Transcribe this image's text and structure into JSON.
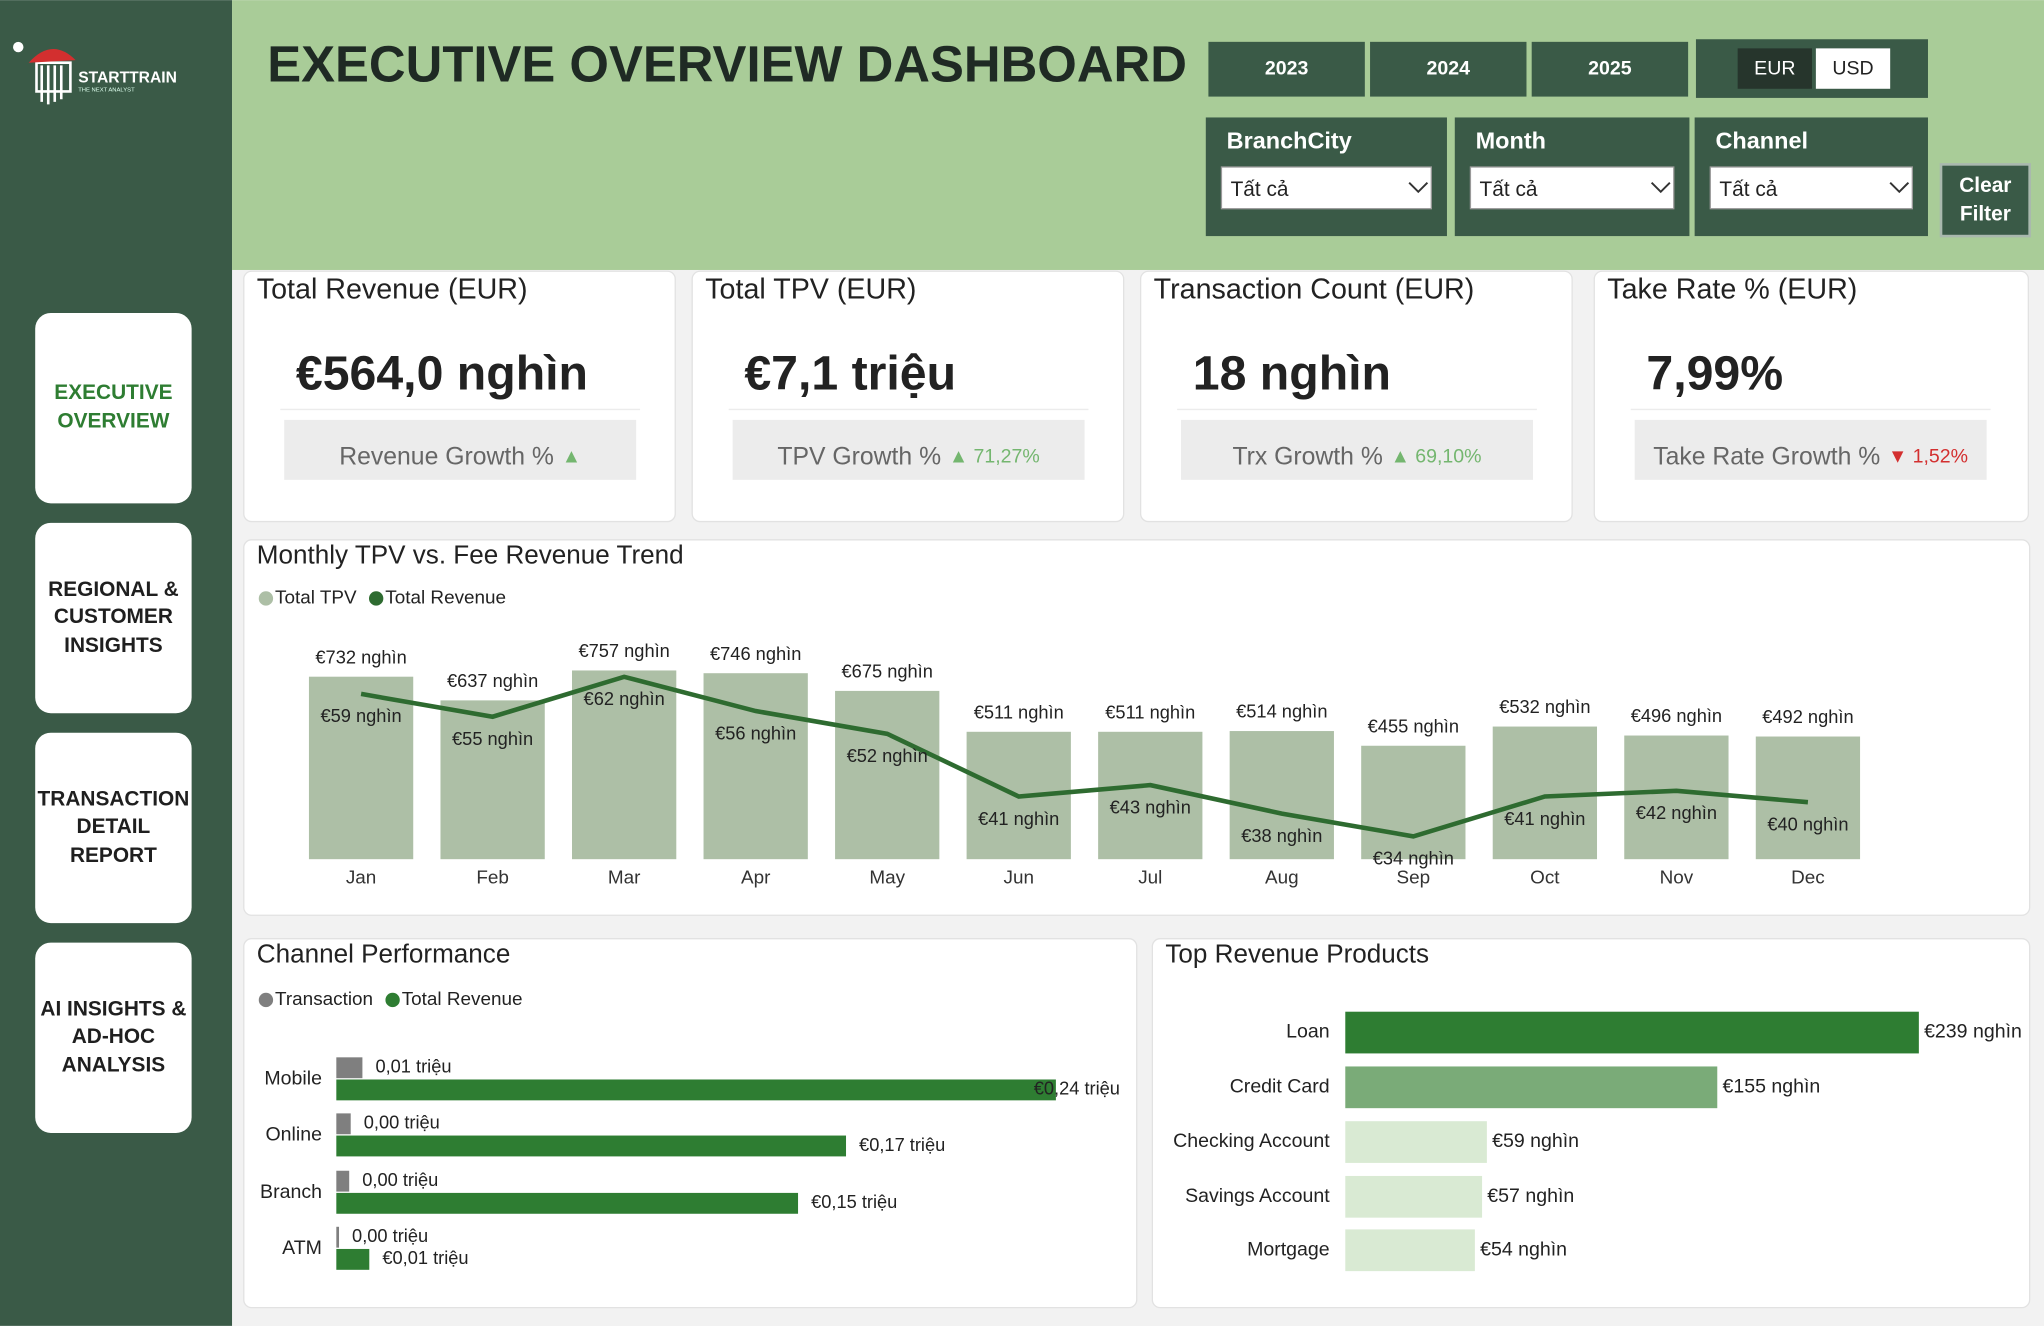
{
  "sidebar": {
    "logo": "STARTTRAIN",
    "logo_tagline": "THE NEXT ANALYST",
    "nav": [
      "EXECUTIVE OVERVIEW",
      "REGIONAL & CUSTOMER INSIGHTS",
      "TRANSACTION DETAIL REPORT",
      "AI INSIGHTS & AD-HOC ANALYSIS"
    ],
    "active": 0
  },
  "header": {
    "title": "EXECUTIVE OVERVIEW DASHBOARD",
    "years": [
      "2023",
      "2024",
      "2025"
    ],
    "currencies": [
      "EUR",
      "USD"
    ],
    "selected_currency": 0,
    "filters": [
      {
        "label": "BranchCity",
        "value": "Tất cả"
      },
      {
        "label": "Month",
        "value": "Tất cả"
      },
      {
        "label": "Channel",
        "value": "Tất cả"
      }
    ],
    "clear": "Clear Filter"
  },
  "kpis": [
    {
      "title": "Total Revenue (EUR)",
      "value": "€564,0 nghìn",
      "growth_label": "Revenue Growth %",
      "arrow": "▲",
      "trend": "up"
    },
    {
      "title": "Total TPV (EUR)",
      "value": "€7,1 triệu",
      "growth_label": "TPV Growth %",
      "arrow": "▲",
      "growth": "71,27%",
      "trend": "up"
    },
    {
      "title": "Transaction Count (EUR)",
      "value": "18 nghìn",
      "growth_label": "Trx Growth %",
      "arrow": "▲",
      "growth": "69,10%",
      "trend": "up"
    },
    {
      "title": "Take Rate % (EUR)",
      "value": "7,99%",
      "growth_label": "Take Rate Growth %",
      "arrow": "▼",
      "growth": "1,52%",
      "trend": "down"
    }
  ],
  "chart_data": [
    {
      "type": "combo",
      "title": "Monthly TPV vs. Fee Revenue Trend",
      "categories": [
        "Jan",
        "Feb",
        "Mar",
        "Apr",
        "May",
        "Jun",
        "Jul",
        "Aug",
        "Sep",
        "Oct",
        "Nov",
        "Dec"
      ],
      "series": [
        {
          "name": "Total TPV",
          "kind": "bar",
          "color": "#adbfa6",
          "values": [
            732,
            637,
            757,
            746,
            675,
            511,
            511,
            514,
            455,
            532,
            496,
            492
          ],
          "value_labels": [
            "€732 nghìn",
            "€637 nghìn",
            "€757 nghìn",
            "€746 nghìn",
            "€675 nghìn",
            "€511 nghìn",
            "€511 nghìn",
            "€514 nghìn",
            "€455 nghìn",
            "€532 nghìn",
            "€496 nghìn",
            "€492 nghìn"
          ]
        },
        {
          "name": "Total Revenue",
          "kind": "line",
          "axis": "y2",
          "color": "#2e6b30",
          "values": [
            59,
            55,
            62,
            56,
            52,
            41,
            43,
            38,
            34,
            41,
            42,
            40
          ],
          "value_labels": [
            "€59 nghìn",
            "€55 nghìn",
            "€62 nghìn",
            "€56 nghìn",
            "€52 nghìn",
            "€41 nghìn",
            "€43 nghìn",
            "€38 nghìn",
            "€34 nghìn",
            "€41 nghìn",
            "€42 nghìn",
            "€40 nghìn"
          ]
        }
      ],
      "ylim": [
        0,
        800
      ],
      "y2lim": [
        30,
        65
      ]
    },
    {
      "type": "hbar",
      "title": "Channel Performance",
      "categories": [
        "Mobile",
        "Online",
        "Branch",
        "ATM"
      ],
      "series": [
        {
          "name": "Transaction",
          "color": "#7f7f7f",
          "values": [
            0.0087,
            0.0048,
            0.0043,
            0.0009
          ],
          "value_labels": [
            "0,01 triệu",
            "0,00 triệu",
            "0,00 triệu",
            "0,00 triệu"
          ]
        },
        {
          "name": "Total Revenue",
          "color": "#2e7d32",
          "values": [
            0.24,
            0.17,
            0.154,
            0.011
          ],
          "value_labels": [
            "€0,24 triệu",
            "€0,17 triệu",
            "€0,15 triệu",
            "€0,01 triệu"
          ]
        }
      ],
      "xlim": [
        0,
        0.24
      ]
    },
    {
      "type": "hbar",
      "title": "Top Revenue Products",
      "categories": [
        "Loan",
        "Credit Card",
        "Checking Account",
        "Savings Account",
        "Mortgage"
      ],
      "values": [
        239,
        155,
        59,
        57,
        54
      ],
      "value_labels": [
        "€239 nghìn",
        "€155 nghìn",
        "€59 nghìn",
        "€57 nghìn",
        "€54 nghìn"
      ],
      "colors": [
        "#2e7d32",
        "#7aab78",
        "#d9ead3",
        "#d9ead3",
        "#d9ead3"
      ],
      "xlim": [
        0,
        239
      ]
    }
  ]
}
